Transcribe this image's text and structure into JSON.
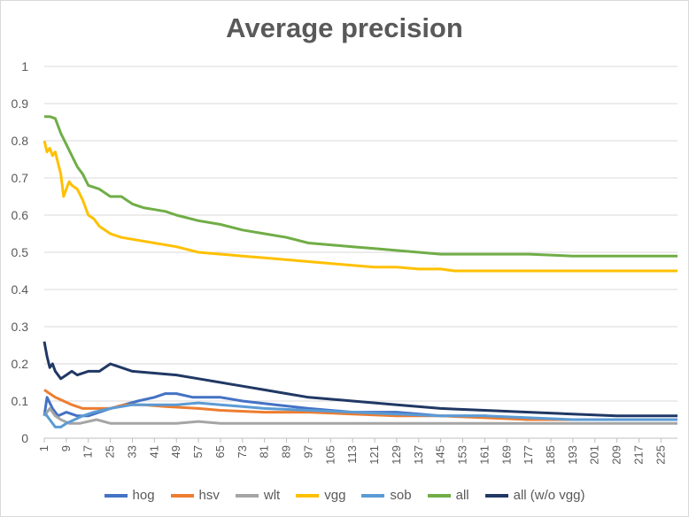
{
  "chart_data": {
    "type": "line",
    "title": "Average precision",
    "xlabel": "",
    "ylabel": "",
    "ylim": [
      0,
      1
    ],
    "yticks": [
      "0",
      "0.1",
      "0.2",
      "0.3",
      "0.4",
      "0.5",
      "0.6",
      "0.7",
      "0.8",
      "0.9",
      "1"
    ],
    "x_range": [
      1,
      231
    ],
    "xticks": [
      1,
      9,
      17,
      25,
      33,
      41,
      49,
      57,
      65,
      73,
      81,
      89,
      97,
      105,
      113,
      121,
      129,
      137,
      145,
      153,
      161,
      169,
      177,
      185,
      193,
      201,
      209,
      217,
      225
    ],
    "grid": true,
    "legend_position": "bottom",
    "series": [
      {
        "name": "hog",
        "color": "#4472C4",
        "points": [
          [
            1,
            0.06
          ],
          [
            2,
            0.11
          ],
          [
            4,
            0.08
          ],
          [
            6,
            0.06
          ],
          [
            9,
            0.07
          ],
          [
            13,
            0.06
          ],
          [
            17,
            0.06
          ],
          [
            21,
            0.07
          ],
          [
            25,
            0.08
          ],
          [
            30,
            0.09
          ],
          [
            35,
            0.1
          ],
          [
            41,
            0.11
          ],
          [
            45,
            0.12
          ],
          [
            49,
            0.12
          ],
          [
            55,
            0.11
          ],
          [
            65,
            0.11
          ],
          [
            73,
            0.1
          ],
          [
            85,
            0.09
          ],
          [
            97,
            0.08
          ],
          [
            113,
            0.07
          ],
          [
            129,
            0.07
          ],
          [
            145,
            0.06
          ],
          [
            161,
            0.06
          ],
          [
            177,
            0.05
          ],
          [
            193,
            0.05
          ],
          [
            209,
            0.05
          ],
          [
            225,
            0.05
          ],
          [
            231,
            0.05
          ]
        ]
      },
      {
        "name": "hsv",
        "color": "#ED7D31",
        "points": [
          [
            1,
            0.13
          ],
          [
            3,
            0.12
          ],
          [
            5,
            0.11
          ],
          [
            8,
            0.1
          ],
          [
            11,
            0.09
          ],
          [
            15,
            0.08
          ],
          [
            20,
            0.08
          ],
          [
            25,
            0.08
          ],
          [
            30,
            0.09
          ],
          [
            37,
            0.09
          ],
          [
            45,
            0.085
          ],
          [
            57,
            0.08
          ],
          [
            65,
            0.075
          ],
          [
            81,
            0.07
          ],
          [
            97,
            0.07
          ],
          [
            113,
            0.065
          ],
          [
            129,
            0.06
          ],
          [
            145,
            0.06
          ],
          [
            161,
            0.055
          ],
          [
            177,
            0.05
          ],
          [
            193,
            0.05
          ],
          [
            209,
            0.05
          ],
          [
            231,
            0.05
          ]
        ]
      },
      {
        "name": "wlt",
        "color": "#A5A5A5",
        "points": [
          [
            1,
            0.06
          ],
          [
            3,
            0.08
          ],
          [
            5,
            0.06
          ],
          [
            7,
            0.05
          ],
          [
            10,
            0.04
          ],
          [
            14,
            0.04
          ],
          [
            20,
            0.05
          ],
          [
            25,
            0.04
          ],
          [
            33,
            0.04
          ],
          [
            41,
            0.04
          ],
          [
            49,
            0.04
          ],
          [
            57,
            0.045
          ],
          [
            65,
            0.04
          ],
          [
            81,
            0.04
          ],
          [
            97,
            0.04
          ],
          [
            113,
            0.04
          ],
          [
            129,
            0.04
          ],
          [
            145,
            0.04
          ],
          [
            161,
            0.04
          ],
          [
            177,
            0.04
          ],
          [
            193,
            0.04
          ],
          [
            209,
            0.04
          ],
          [
            231,
            0.04
          ]
        ]
      },
      {
        "name": "vgg",
        "color": "#FFC000",
        "points": [
          [
            1,
            0.8
          ],
          [
            2,
            0.77
          ],
          [
            3,
            0.78
          ],
          [
            4,
            0.76
          ],
          [
            5,
            0.77
          ],
          [
            6,
            0.74
          ],
          [
            7,
            0.71
          ],
          [
            8,
            0.65
          ],
          [
            9,
            0.67
          ],
          [
            10,
            0.69
          ],
          [
            11,
            0.68
          ],
          [
            13,
            0.67
          ],
          [
            15,
            0.64
          ],
          [
            17,
            0.6
          ],
          [
            19,
            0.59
          ],
          [
            21,
            0.57
          ],
          [
            25,
            0.55
          ],
          [
            29,
            0.54
          ],
          [
            33,
            0.535
          ],
          [
            41,
            0.525
          ],
          [
            49,
            0.515
          ],
          [
            57,
            0.5
          ],
          [
            65,
            0.495
          ],
          [
            73,
            0.49
          ],
          [
            81,
            0.485
          ],
          [
            89,
            0.48
          ],
          [
            97,
            0.475
          ],
          [
            105,
            0.47
          ],
          [
            113,
            0.465
          ],
          [
            121,
            0.46
          ],
          [
            129,
            0.46
          ],
          [
            137,
            0.455
          ],
          [
            145,
            0.455
          ],
          [
            150,
            0.45
          ],
          [
            153,
            0.45
          ],
          [
            161,
            0.45
          ],
          [
            177,
            0.45
          ],
          [
            193,
            0.45
          ],
          [
            209,
            0.45
          ],
          [
            231,
            0.45
          ]
        ]
      },
      {
        "name": "sob",
        "color": "#5B9BD5",
        "points": [
          [
            1,
            0.07
          ],
          [
            3,
            0.05
          ],
          [
            5,
            0.03
          ],
          [
            7,
            0.03
          ],
          [
            9,
            0.04
          ],
          [
            12,
            0.05
          ],
          [
            15,
            0.06
          ],
          [
            19,
            0.07
          ],
          [
            25,
            0.08
          ],
          [
            33,
            0.09
          ],
          [
            41,
            0.09
          ],
          [
            49,
            0.09
          ],
          [
            57,
            0.095
          ],
          [
            65,
            0.09
          ],
          [
            73,
            0.085
          ],
          [
            81,
            0.08
          ],
          [
            97,
            0.075
          ],
          [
            113,
            0.07
          ],
          [
            129,
            0.065
          ],
          [
            145,
            0.06
          ],
          [
            161,
            0.06
          ],
          [
            177,
            0.055
          ],
          [
            193,
            0.05
          ],
          [
            209,
            0.05
          ],
          [
            231,
            0.05
          ]
        ]
      },
      {
        "name": "all",
        "color": "#70AD47",
        "points": [
          [
            1,
            0.865
          ],
          [
            3,
            0.865
          ],
          [
            5,
            0.86
          ],
          [
            7,
            0.82
          ],
          [
            9,
            0.79
          ],
          [
            11,
            0.76
          ],
          [
            13,
            0.73
          ],
          [
            15,
            0.71
          ],
          [
            17,
            0.68
          ],
          [
            21,
            0.67
          ],
          [
            25,
            0.65
          ],
          [
            29,
            0.65
          ],
          [
            33,
            0.63
          ],
          [
            37,
            0.62
          ],
          [
            41,
            0.615
          ],
          [
            45,
            0.61
          ],
          [
            49,
            0.6
          ],
          [
            57,
            0.585
          ],
          [
            65,
            0.575
          ],
          [
            73,
            0.56
          ],
          [
            81,
            0.55
          ],
          [
            89,
            0.54
          ],
          [
            97,
            0.525
          ],
          [
            105,
            0.52
          ],
          [
            113,
            0.515
          ],
          [
            121,
            0.51
          ],
          [
            129,
            0.505
          ],
          [
            137,
            0.5
          ],
          [
            145,
            0.495
          ],
          [
            161,
            0.495
          ],
          [
            177,
            0.495
          ],
          [
            193,
            0.49
          ],
          [
            209,
            0.49
          ],
          [
            231,
            0.49
          ]
        ]
      },
      {
        "name": "all (w/o vgg)",
        "color": "#203864",
        "points": [
          [
            1,
            0.26
          ],
          [
            2,
            0.22
          ],
          [
            3,
            0.19
          ],
          [
            4,
            0.2
          ],
          [
            5,
            0.18
          ],
          [
            7,
            0.16
          ],
          [
            9,
            0.17
          ],
          [
            11,
            0.18
          ],
          [
            13,
            0.17
          ],
          [
            17,
            0.18
          ],
          [
            21,
            0.18
          ],
          [
            25,
            0.2
          ],
          [
            29,
            0.19
          ],
          [
            33,
            0.18
          ],
          [
            41,
            0.175
          ],
          [
            49,
            0.17
          ],
          [
            57,
            0.16
          ],
          [
            65,
            0.15
          ],
          [
            73,
            0.14
          ],
          [
            81,
            0.13
          ],
          [
            89,
            0.12
          ],
          [
            97,
            0.11
          ],
          [
            113,
            0.1
          ],
          [
            129,
            0.09
          ],
          [
            145,
            0.08
          ],
          [
            161,
            0.075
          ],
          [
            177,
            0.07
          ],
          [
            193,
            0.065
          ],
          [
            209,
            0.06
          ],
          [
            231,
            0.06
          ]
        ]
      }
    ]
  }
}
